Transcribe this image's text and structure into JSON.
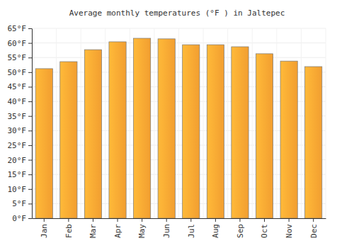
{
  "chart_data": {
    "type": "bar",
    "title": "Average monthly temperatures (°F ) in Jaltepec",
    "categories": [
      "Jan",
      "Feb",
      "Mar",
      "Apr",
      "May",
      "Jun",
      "Jul",
      "Aug",
      "Sep",
      "Oct",
      "Nov",
      "Dec"
    ],
    "values": [
      51.2,
      53.6,
      57.7,
      60.4,
      61.6,
      61.4,
      59.4,
      59.4,
      58.7,
      56.3,
      53.8,
      51.9
    ],
    "color": "#ffa733",
    "ylim": [
      0,
      65
    ],
    "yticks": [
      {
        "value": 0,
        "label": "0°F"
      },
      {
        "value": 5,
        "label": "5°F"
      },
      {
        "value": 10,
        "label": "10°F"
      },
      {
        "value": 15,
        "label": "15°F"
      },
      {
        "value": 20,
        "label": "20°F"
      },
      {
        "value": 25,
        "label": "25°F"
      },
      {
        "value": 30,
        "label": "30°F"
      },
      {
        "value": 35,
        "label": "35°F"
      },
      {
        "value": 40,
        "label": "40°F"
      },
      {
        "value": 45,
        "label": "45°F"
      },
      {
        "value": 50,
        "label": "50°F"
      },
      {
        "value": 55,
        "label": "55°F"
      },
      {
        "value": 60,
        "label": "60°F"
      },
      {
        "value": 65,
        "label": "65°F"
      }
    ],
    "grid": true
  }
}
